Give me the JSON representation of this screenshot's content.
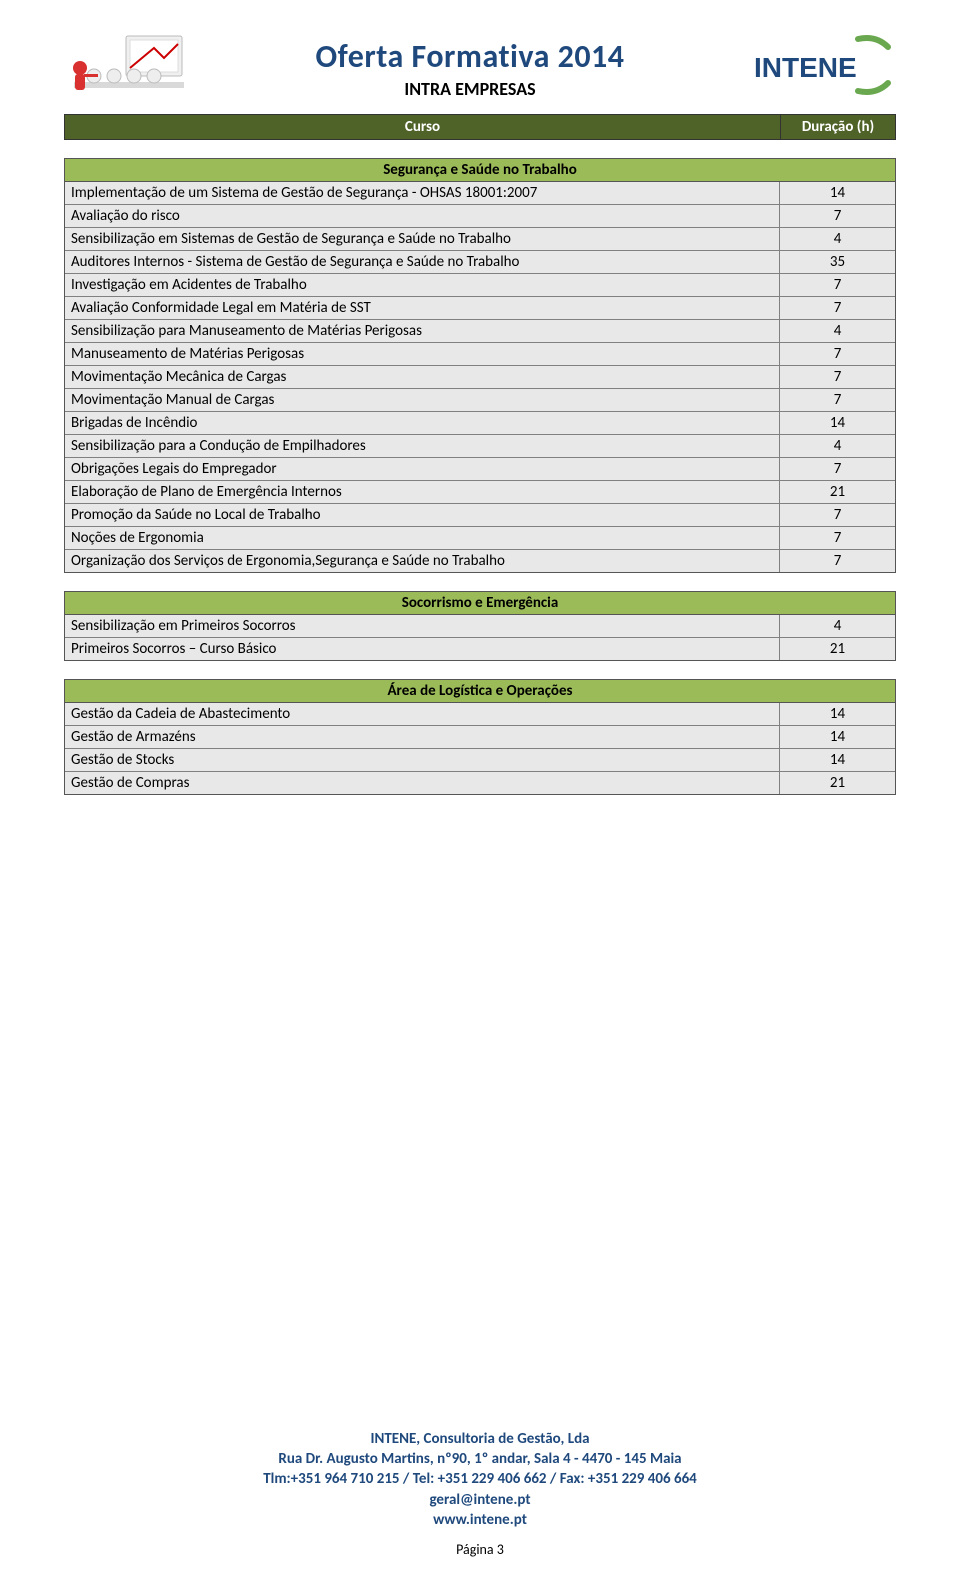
{
  "header": {
    "main_title": "Oferta Formativa 2014",
    "subtitle": "INTRA  EMPRESAS",
    "col_curso": "Curso",
    "col_duracao": "Duração (h)",
    "brand_name": "INTENE"
  },
  "colors": {
    "title_color": "#1f497d",
    "header_bar_bg": "#4f6228",
    "header_bar_text": "#ffffff",
    "section_title_bg": "#9bbb59",
    "row_bg": "#e8e8e8",
    "border": "#555555",
    "footer_color": "#1f497d"
  },
  "sections": [
    {
      "title": "Segurança e Saúde no Trabalho",
      "rows": [
        {
          "label": "Implementação de um Sistema de Gestão de Segurança - OHSAS 18001:2007",
          "value": "14"
        },
        {
          "label": "Avaliação do risco",
          "value": "7"
        },
        {
          "label": "Sensibilização em Sistemas de Gestão de Segurança e Saúde no Trabalho",
          "value": "4"
        },
        {
          "label": "Auditores Internos - Sistema de Gestão de Segurança e Saúde no Trabalho",
          "value": "35"
        },
        {
          "label": "Investigação em Acidentes de Trabalho",
          "value": "7"
        },
        {
          "label": "Avaliação Conformidade Legal em Matéria de SST",
          "value": "7"
        },
        {
          "label": "Sensibilização para Manuseamento de Matérias Perigosas",
          "value": "4"
        },
        {
          "label": "Manuseamento de Matérias Perigosas",
          "value": "7"
        },
        {
          "label": "Movimentação Mecânica de Cargas",
          "value": "7"
        },
        {
          "label": "Movimentação Manual de Cargas",
          "value": "7"
        },
        {
          "label": "Brigadas de Incêndio",
          "value": "14"
        },
        {
          "label": "Sensibilização para a Condução de Empilhadores",
          "value": "4"
        },
        {
          "label": "Obrigações Legais do Empregador",
          "value": "7"
        },
        {
          "label": "Elaboração de Plano de Emergência Internos",
          "value": "21"
        },
        {
          "label": "Promoção da Saúde no Local de Trabalho",
          "value": "7"
        },
        {
          "label": "Noções de Ergonomia",
          "value": "7"
        },
        {
          "label": "Organização dos Serviços de Ergonomia,Segurança e Saúde no Trabalho",
          "value": "7"
        }
      ]
    },
    {
      "title": "Socorrismo e Emergência",
      "rows": [
        {
          "label": "Sensibilização em Primeiros Socorros",
          "value": "4"
        },
        {
          "label": "Primeiros Socorros – Curso Básico",
          "value": "21"
        }
      ]
    },
    {
      "title": "Área de Logística e Operações",
      "rows": [
        {
          "label": "Gestão da Cadeia de Abastecimento",
          "value": "14"
        },
        {
          "label": "Gestão de Armazéns",
          "value": "14"
        },
        {
          "label": "Gestão de Stocks",
          "value": "14"
        },
        {
          "label": "Gestão de Compras",
          "value": "21"
        }
      ]
    }
  ],
  "footer": {
    "line1": "INTENE, Consultoria de Gestão, Lda",
    "line2": "Rua Dr. Augusto Martins, nº90, 1º andar, Sala 4 - 4470 - 145 Maia",
    "line3": "Tlm:+351 964 710 215  / Tel: +351 229 406 662 / Fax: +351 229 406 664",
    "line4": "geral@intene.pt",
    "line5": "www.intene.pt"
  },
  "page_number": "Página 3"
}
